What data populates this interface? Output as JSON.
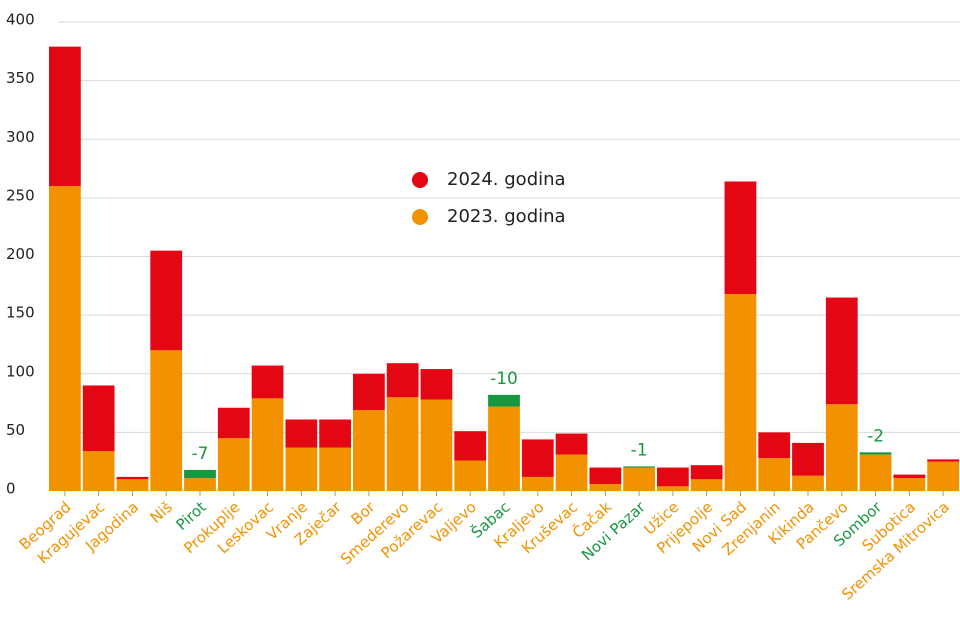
{
  "chart_data": {
    "type": "stacked_bar",
    "categories": [
      "Beograd",
      "Kragujevac",
      "Jagodina",
      "Niš",
      "Pirot",
      "Prokuplje",
      "Leskovac",
      "Vranje",
      "Zaječar",
      "Bor",
      "Smederevo",
      "Požarevac",
      "Valjevo",
      "Šabac",
      "Kraljevo",
      "Kruševac",
      "Čačak",
      "Novi Pazar",
      "Užice",
      "Prijepolje",
      "Novi Sad",
      "Zrenjanin",
      "Kikinda",
      "Pančevo",
      "Sombor",
      "Subotica",
      "Sremska Mitrovica"
    ],
    "series": [
      {
        "name": "2023. godina",
        "color": "#f39200",
        "values": [
          260,
          34,
          10,
          120,
          11,
          45,
          79,
          37,
          37,
          69,
          80,
          78,
          26,
          72,
          12,
          31,
          6,
          20,
          4,
          10,
          168,
          28,
          13,
          74,
          31,
          11,
          25
        ]
      },
      {
        "name": "2024. godina",
        "color": "#e30613",
        "values": [
          119,
          56,
          2,
          85,
          null,
          26,
          28,
          24,
          24,
          31,
          29,
          26,
          25,
          null,
          32,
          18,
          14,
          null,
          16,
          12,
          96,
          22,
          28,
          91,
          null,
          3,
          2
        ]
      }
    ],
    "decreases": {
      "color": "#1a9641",
      "values": [
        null,
        null,
        null,
        null,
        -7,
        null,
        null,
        null,
        null,
        null,
        null,
        null,
        null,
        -10,
        null,
        null,
        null,
        -1,
        null,
        null,
        null,
        null,
        null,
        null,
        -2,
        null,
        null
      ]
    },
    "legend_order": [
      1,
      0
    ],
    "ylim": [
      0,
      400
    ],
    "yticks": [
      0,
      50,
      100,
      150,
      200,
      250,
      300,
      350,
      400
    ],
    "grid": true
  }
}
